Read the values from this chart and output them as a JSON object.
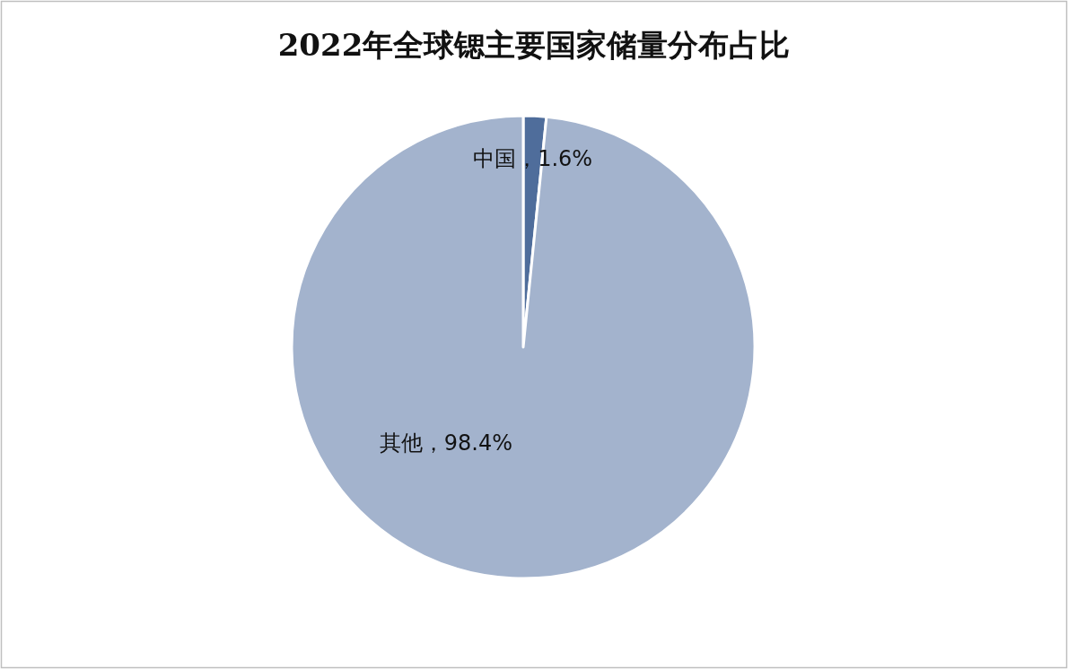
{
  "chart_data": {
    "type": "pie",
    "title": "2022年全球锶主要国家储量分布占比",
    "categories": [
      "中国",
      "其他"
    ],
    "values": [
      1.6,
      98.4
    ],
    "value_labels": [
      "1.6%",
      "98.4%"
    ],
    "colors": [
      "#4f6d9b",
      "#a3b3cd"
    ]
  }
}
